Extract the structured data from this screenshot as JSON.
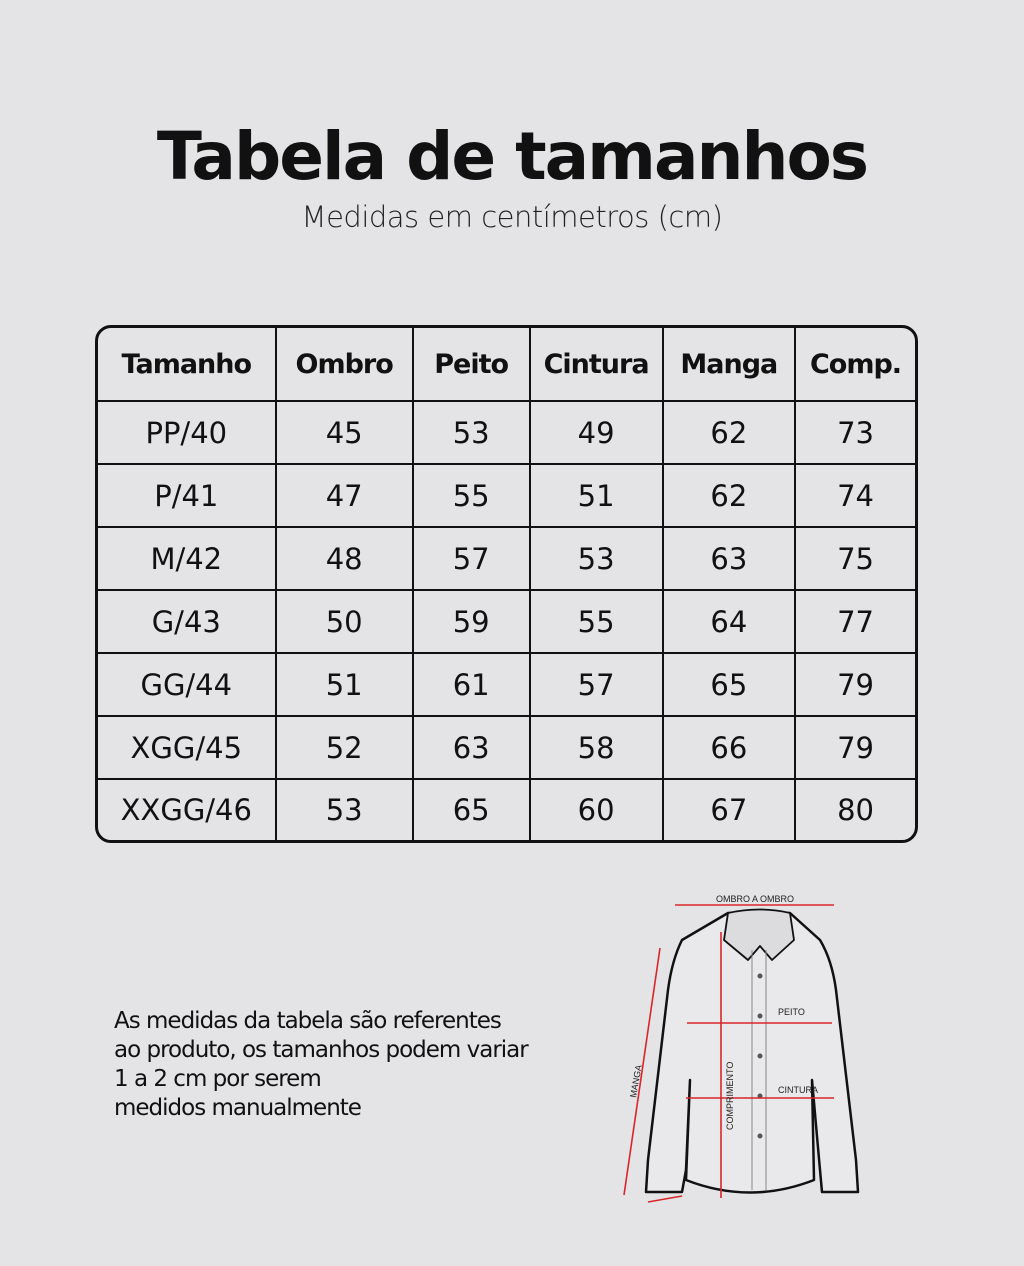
{
  "header": {
    "title": "Tabela de tamanhos",
    "subtitle": "Medidas em centímetros (cm)"
  },
  "table": {
    "columns": [
      "Tamanho",
      "Ombro",
      "Peito",
      "Cintura",
      "Manga",
      "Comp."
    ],
    "rows": [
      [
        "PP/40",
        "45",
        "53",
        "49",
        "62",
        "73"
      ],
      [
        "P/41",
        "47",
        "55",
        "51",
        "62",
        "74"
      ],
      [
        "M/42",
        "48",
        "57",
        "53",
        "63",
        "75"
      ],
      [
        "G/43",
        "50",
        "59",
        "55",
        "64",
        "77"
      ],
      [
        "GG/44",
        "51",
        "61",
        "57",
        "65",
        "79"
      ],
      [
        "XGG/45",
        "52",
        "63",
        "58",
        "66",
        "79"
      ],
      [
        "XXGG/46",
        "53",
        "65",
        "60",
        "67",
        "80"
      ]
    ]
  },
  "note": {
    "lines": [
      "As medidas da tabela são referentes",
      "ao produto, os tamanhos  podem variar",
      "1 a 2 cm por serem",
      "medidos manualmente"
    ]
  },
  "diagram": {
    "labels": {
      "shoulder": "OMBRO A OMBRO",
      "chest": "PEITO",
      "waist": "CINTURA",
      "sleeve": "MANGA",
      "length": "COMPRIMENTO"
    },
    "line_color": "#d9262b"
  }
}
